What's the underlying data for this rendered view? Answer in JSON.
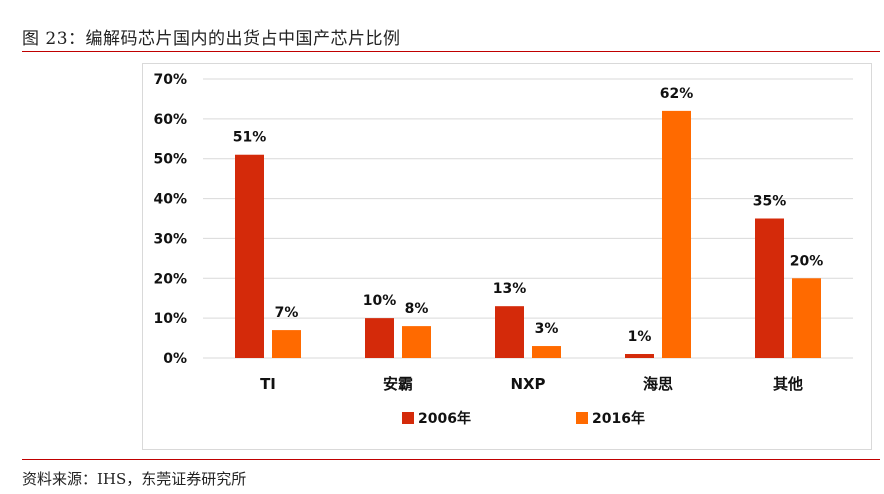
{
  "figure": {
    "title": "图 23：编解码芯片国内的出货占中国产芯片比例",
    "source": "资料来源：IHS，东莞证券研究所"
  },
  "colors": {
    "rule": "#c00000",
    "series_2006": "#d42a0a",
    "series_2016": "#ff6a00",
    "grid": "#d9d9d9"
  },
  "chart_data": {
    "type": "bar",
    "categories": [
      "TI",
      "安霸",
      "NXP",
      "海思",
      "其他"
    ],
    "series": [
      {
        "name": "2006年",
        "values": [
          51,
          10,
          13,
          1,
          35
        ],
        "labels": [
          "51%",
          "10%",
          "13%",
          "1%",
          "35%"
        ]
      },
      {
        "name": "2016年",
        "values": [
          7,
          8,
          3,
          62,
          20
        ],
        "labels": [
          "7%",
          "8%",
          "3%",
          "62%",
          "20%"
        ]
      }
    ],
    "ylim": [
      0,
      70
    ],
    "yticks": [
      "0%",
      "10%",
      "20%",
      "30%",
      "40%",
      "50%",
      "60%",
      "70%"
    ],
    "grid": true,
    "legend": "bottom-center"
  }
}
